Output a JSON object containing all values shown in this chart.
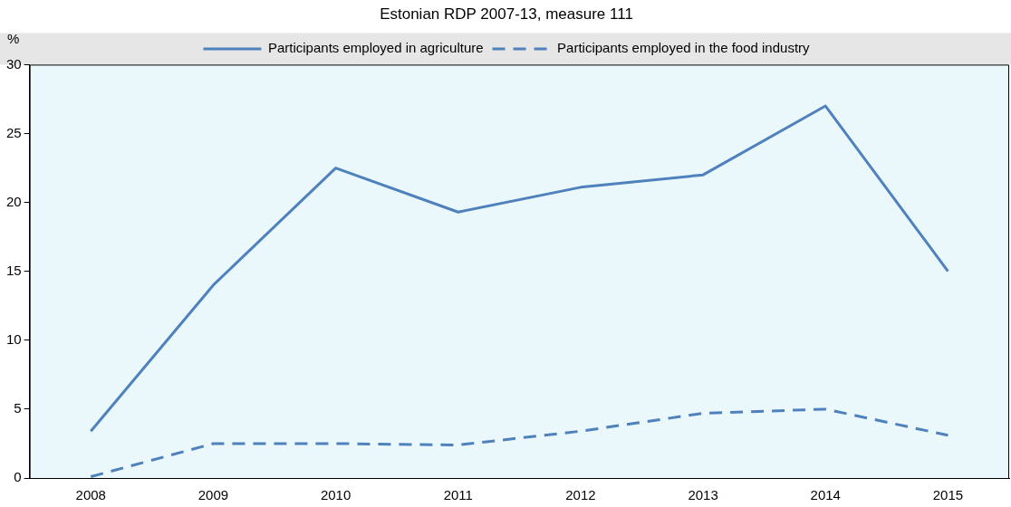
{
  "chart_data": {
    "type": "line",
    "title": "Estonian RDP 2007-13, measure 111",
    "ylabel": "%",
    "categories": [
      "2008",
      "2009",
      "2010",
      "2011",
      "2012",
      "2013",
      "2014",
      "2015"
    ],
    "series": [
      {
        "name": "Participants employed in agriculture",
        "color": "#4f81bd",
        "line_style": "solid",
        "values": [
          3.4,
          14.0,
          22.5,
          19.3,
          21.1,
          22.0,
          27.0,
          15.0
        ]
      },
      {
        "name": "Participants employed in the food industry",
        "color": "#4f81bd",
        "line_style": "dashed",
        "values": [
          0.1,
          2.5,
          2.5,
          2.4,
          3.4,
          4.7,
          5.0,
          3.1
        ]
      }
    ],
    "ylim": [
      0,
      30
    ],
    "yticks": [
      0,
      5,
      10,
      15,
      20,
      25,
      30
    ],
    "grid": false,
    "legend": "top",
    "marker": "none"
  }
}
